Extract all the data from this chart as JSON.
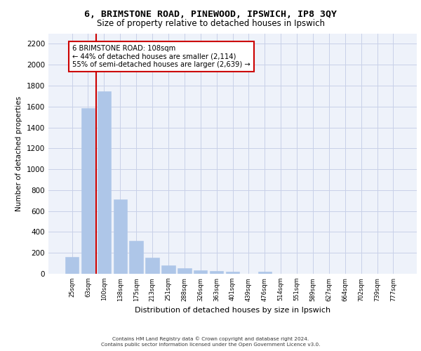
{
  "title1": "6, BRIMSTONE ROAD, PINEWOOD, IPSWICH, IP8 3QY",
  "title2": "Size of property relative to detached houses in Ipswich",
  "xlabel": "Distribution of detached houses by size in Ipswich",
  "ylabel": "Number of detached properties",
  "bar_color": "#aec6e8",
  "bar_edge_color": "#aec6e8",
  "grid_color": "#c8d0e8",
  "background_color": "#eef2fa",
  "categories": [
    "25sqm",
    "63sqm",
    "100sqm",
    "138sqm",
    "175sqm",
    "213sqm",
    "251sqm",
    "288sqm",
    "326sqm",
    "363sqm",
    "401sqm",
    "439sqm",
    "476sqm",
    "514sqm",
    "551sqm",
    "589sqm",
    "627sqm",
    "664sqm",
    "702sqm",
    "739sqm",
    "777sqm"
  ],
  "values": [
    160,
    1585,
    1745,
    710,
    315,
    155,
    80,
    55,
    35,
    25,
    20,
    0,
    20,
    0,
    0,
    0,
    0,
    0,
    0,
    0,
    0
  ],
  "ylim": [
    0,
    2300
  ],
  "yticks": [
    0,
    200,
    400,
    600,
    800,
    1000,
    1200,
    1400,
    1600,
    1800,
    2000,
    2200
  ],
  "vline_color": "#cc0000",
  "annotation_title": "6 BRIMSTONE ROAD: 108sqm",
  "annotation_line1": "← 44% of detached houses are smaller (2,114)",
  "annotation_line2": "55% of semi-detached houses are larger (2,639) →",
  "annotation_box_color": "#ffffff",
  "annotation_border_color": "#cc0000",
  "footer1": "Contains HM Land Registry data © Crown copyright and database right 2024.",
  "footer2": "Contains public sector information licensed under the Open Government Licence v3.0."
}
